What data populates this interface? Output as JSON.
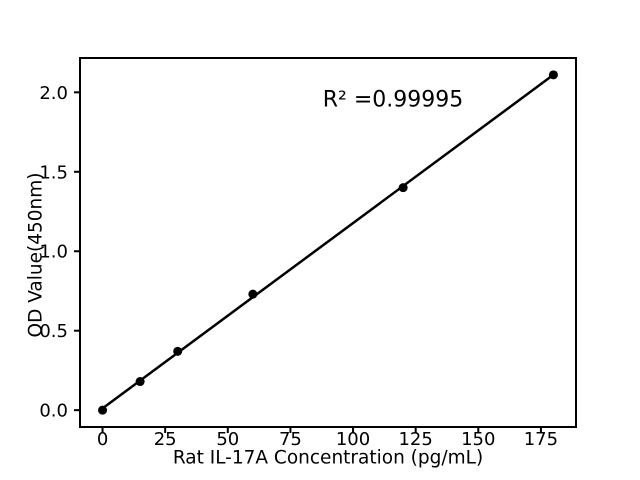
{
  "chart_data": {
    "type": "scatter",
    "title": "",
    "xlabel": "Rat IL-17A Concentration (pg/mL)",
    "ylabel": "OD Value(450nm)",
    "x": [
      0,
      15,
      30,
      60,
      120,
      180
    ],
    "y": [
      0.0,
      0.18,
      0.37,
      0.73,
      1.4,
      2.11
    ],
    "fit_line": true,
    "annotation": {
      "text": "R² =0.99995"
    },
    "x_tick_labels": [
      "0",
      "25",
      "50",
      "75",
      "100",
      "125",
      "150",
      "175"
    ],
    "y_tick_labels": [
      "0.0",
      "0.5",
      "1.0",
      "1.5",
      "2.0"
    ],
    "xlim": [
      -9,
      189
    ],
    "ylim": [
      -0.106,
      2.216
    ],
    "grid": false,
    "legend": null,
    "colors": {
      "line": "#000000",
      "marker": "#000000",
      "text": "#000000",
      "background": "#ffffff"
    }
  }
}
